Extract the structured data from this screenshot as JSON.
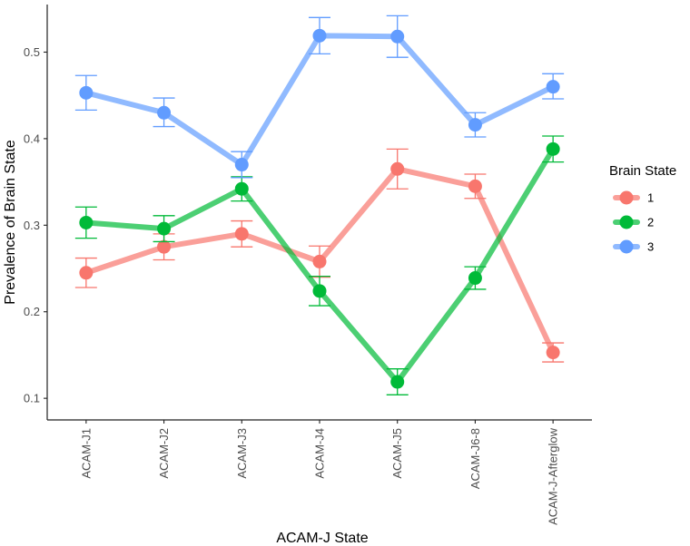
{
  "chart_data": {
    "type": "line",
    "title": "",
    "xlabel": "ACAM-J State",
    "ylabel": "Prevalence of Brain State",
    "categories": [
      "ACAM-J1",
      "ACAM-J2",
      "ACAM-J3",
      "ACAM-J4",
      "ACAM-J5",
      "ACAM-J6-8",
      "ACAM-J-Afterglow"
    ],
    "ylim": [
      0.075,
      0.555
    ],
    "yticks": [
      "0.1",
      "0.2",
      "0.3",
      "0.4",
      "0.5"
    ],
    "grid": false,
    "legend": {
      "title": "Brain State",
      "position": "right"
    },
    "series": [
      {
        "name": "1",
        "color": "#F8766D",
        "values": [
          0.245,
          0.275,
          0.29,
          0.258,
          0.365,
          0.345,
          0.153
        ],
        "error_low": [
          0.228,
          0.26,
          0.275,
          0.24,
          0.342,
          0.331,
          0.142
        ],
        "error_high": [
          0.262,
          0.29,
          0.305,
          0.276,
          0.388,
          0.359,
          0.164
        ]
      },
      {
        "name": "2",
        "color": "#00BA38",
        "values": [
          0.303,
          0.296,
          0.342,
          0.224,
          0.119,
          0.239,
          0.388
        ],
        "error_low": [
          0.285,
          0.281,
          0.328,
          0.207,
          0.104,
          0.226,
          0.373
        ],
        "error_high": [
          0.321,
          0.311,
          0.356,
          0.241,
          0.134,
          0.252,
          0.403
        ]
      },
      {
        "name": "3",
        "color": "#619CFF",
        "values": [
          0.453,
          0.43,
          0.37,
          0.519,
          0.518,
          0.416,
          0.46
        ],
        "error_low": [
          0.433,
          0.414,
          0.355,
          0.498,
          0.494,
          0.402,
          0.446
        ],
        "error_high": [
          0.473,
          0.447,
          0.385,
          0.54,
          0.542,
          0.43,
          0.475
        ]
      }
    ]
  }
}
